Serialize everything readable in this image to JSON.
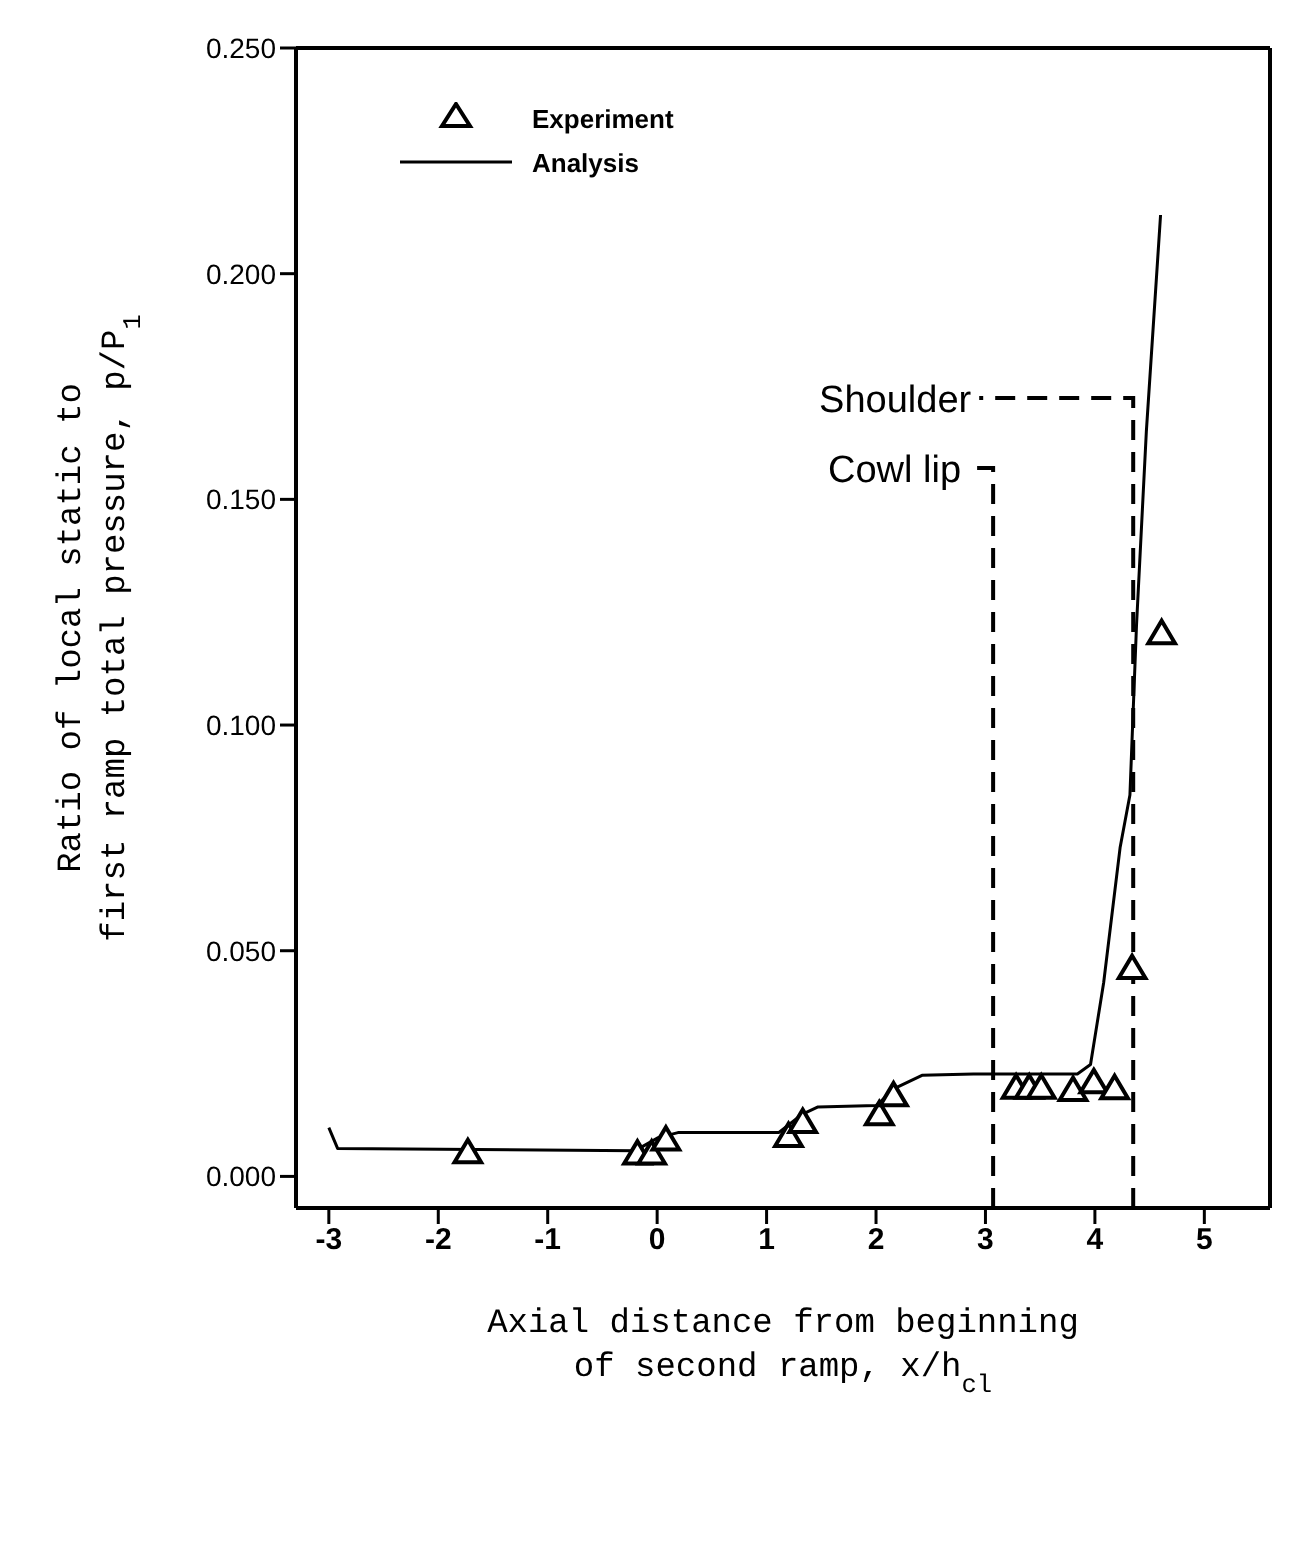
{
  "chart_data": {
    "type": "line",
    "xlabel": "Axial distance from beginning of second ramp, x/h$_{cl}$",
    "ylabel": "Ratio of local static to first ramp total pressure, p/P$_{1}$",
    "xlim": [
      -3.3,
      5.6
    ],
    "xticks": [
      -3,
      -2,
      -1,
      0,
      1,
      2,
      3,
      4,
      5
    ],
    "ylim": [
      -0.007,
      0.25
    ],
    "yticks": [
      {
        "value": 0,
        "label": "0.000"
      },
      {
        "value": 0.05,
        "label": "0.050"
      },
      {
        "value": 0.1,
        "label": "0.100"
      },
      {
        "value": 0.15,
        "label": "0.150"
      },
      {
        "value": 0.2,
        "label": "0.200"
      },
      {
        "value": 0.25,
        "label": "0.250"
      }
    ],
    "grid": false,
    "legend": "top left",
    "series": [
      {
        "name": "Experiment",
        "type": "scatter",
        "marker": "triangle",
        "color": "#000000",
        "x": [
          -1.73,
          -0.18,
          -0.05,
          0.08,
          1.2,
          1.33,
          2.03,
          2.16,
          3.28,
          3.4,
          3.51,
          3.8,
          3.99,
          4.18,
          4.34,
          4.61
        ],
        "values": [
          0.005,
          0.0047,
          0.0047,
          0.0078,
          0.0086,
          0.0117,
          0.0134,
          0.0176,
          0.0193,
          0.0193,
          0.0193,
          0.0188,
          0.0205,
          0.0192,
          0.0458,
          0.12
        ]
      },
      {
        "name": "Analysis",
        "marker": "none",
        "color": "#000000",
        "x": [
          -3,
          -2.92,
          -0.2,
          0.01,
          0.19,
          1.11,
          1.32,
          1.47,
          2.0,
          2.18,
          2.42,
          2.89,
          3.84,
          3.96,
          4.08,
          4.23,
          4.32,
          4.38,
          4.47,
          4.6
        ],
        "values": [
          0.0108,
          0.0062,
          0.0057,
          0.0086,
          0.0097,
          0.0097,
          0.0137,
          0.0154,
          0.0157,
          0.0196,
          0.0224,
          0.0227,
          0.0227,
          0.0248,
          0.0429,
          0.0728,
          0.0845,
          0.122,
          0.165,
          0.213
        ]
      }
    ],
    "ref_lines": [
      {
        "axis": "x",
        "value": 3.07,
        "label": "Cowl lip",
        "line_style": "dashed",
        "color": "#000000"
      },
      {
        "axis": "x",
        "value": 4.35,
        "label": "Shoulder",
        "line_style": "dashed",
        "color": "#000000"
      }
    ]
  }
}
